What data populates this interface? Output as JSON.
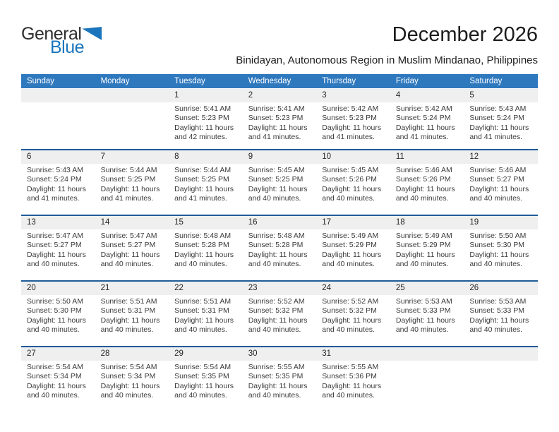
{
  "branding": {
    "logo_word_general": "General",
    "logo_word_blue": "Blue"
  },
  "header": {
    "title": "December 2026",
    "subtitle": "Binidayan, Autonomous Region in Muslim Mindanao, Philippines"
  },
  "colors": {
    "weekday_header_bg": "#2e78be",
    "week_divider": "#1f5c99",
    "day_number_band_bg": "#efefef",
    "logo_blue": "#1b75bc",
    "text": "#3b3b3b"
  },
  "calendar": {
    "weekday_headers": [
      "Sunday",
      "Monday",
      "Tuesday",
      "Wednesday",
      "Thursday",
      "Friday",
      "Saturday"
    ],
    "weeks": [
      {
        "days": [
          null,
          null,
          {
            "day": "1",
            "sunrise": "Sunrise: 5:41 AM",
            "sunset": "Sunset: 5:23 PM",
            "daylight": "Daylight: 11 hours and 42 minutes."
          },
          {
            "day": "2",
            "sunrise": "Sunrise: 5:41 AM",
            "sunset": "Sunset: 5:23 PM",
            "daylight": "Daylight: 11 hours and 41 minutes."
          },
          {
            "day": "3",
            "sunrise": "Sunrise: 5:42 AM",
            "sunset": "Sunset: 5:23 PM",
            "daylight": "Daylight: 11 hours and 41 minutes."
          },
          {
            "day": "4",
            "sunrise": "Sunrise: 5:42 AM",
            "sunset": "Sunset: 5:24 PM",
            "daylight": "Daylight: 11 hours and 41 minutes."
          },
          {
            "day": "5",
            "sunrise": "Sunrise: 5:43 AM",
            "sunset": "Sunset: 5:24 PM",
            "daylight": "Daylight: 11 hours and 41 minutes."
          }
        ]
      },
      {
        "days": [
          {
            "day": "6",
            "sunrise": "Sunrise: 5:43 AM",
            "sunset": "Sunset: 5:24 PM",
            "daylight": "Daylight: 11 hours and 41 minutes."
          },
          {
            "day": "7",
            "sunrise": "Sunrise: 5:44 AM",
            "sunset": "Sunset: 5:25 PM",
            "daylight": "Daylight: 11 hours and 41 minutes."
          },
          {
            "day": "8",
            "sunrise": "Sunrise: 5:44 AM",
            "sunset": "Sunset: 5:25 PM",
            "daylight": "Daylight: 11 hours and 41 minutes."
          },
          {
            "day": "9",
            "sunrise": "Sunrise: 5:45 AM",
            "sunset": "Sunset: 5:25 PM",
            "daylight": "Daylight: 11 hours and 40 minutes."
          },
          {
            "day": "10",
            "sunrise": "Sunrise: 5:45 AM",
            "sunset": "Sunset: 5:26 PM",
            "daylight": "Daylight: 11 hours and 40 minutes."
          },
          {
            "day": "11",
            "sunrise": "Sunrise: 5:46 AM",
            "sunset": "Sunset: 5:26 PM",
            "daylight": "Daylight: 11 hours and 40 minutes."
          },
          {
            "day": "12",
            "sunrise": "Sunrise: 5:46 AM",
            "sunset": "Sunset: 5:27 PM",
            "daylight": "Daylight: 11 hours and 40 minutes."
          }
        ]
      },
      {
        "days": [
          {
            "day": "13",
            "sunrise": "Sunrise: 5:47 AM",
            "sunset": "Sunset: 5:27 PM",
            "daylight": "Daylight: 11 hours and 40 minutes."
          },
          {
            "day": "14",
            "sunrise": "Sunrise: 5:47 AM",
            "sunset": "Sunset: 5:27 PM",
            "daylight": "Daylight: 11 hours and 40 minutes."
          },
          {
            "day": "15",
            "sunrise": "Sunrise: 5:48 AM",
            "sunset": "Sunset: 5:28 PM",
            "daylight": "Daylight: 11 hours and 40 minutes."
          },
          {
            "day": "16",
            "sunrise": "Sunrise: 5:48 AM",
            "sunset": "Sunset: 5:28 PM",
            "daylight": "Daylight: 11 hours and 40 minutes."
          },
          {
            "day": "17",
            "sunrise": "Sunrise: 5:49 AM",
            "sunset": "Sunset: 5:29 PM",
            "daylight": "Daylight: 11 hours and 40 minutes."
          },
          {
            "day": "18",
            "sunrise": "Sunrise: 5:49 AM",
            "sunset": "Sunset: 5:29 PM",
            "daylight": "Daylight: 11 hours and 40 minutes."
          },
          {
            "day": "19",
            "sunrise": "Sunrise: 5:50 AM",
            "sunset": "Sunset: 5:30 PM",
            "daylight": "Daylight: 11 hours and 40 minutes."
          }
        ]
      },
      {
        "days": [
          {
            "day": "20",
            "sunrise": "Sunrise: 5:50 AM",
            "sunset": "Sunset: 5:30 PM",
            "daylight": "Daylight: 11 hours and 40 minutes."
          },
          {
            "day": "21",
            "sunrise": "Sunrise: 5:51 AM",
            "sunset": "Sunset: 5:31 PM",
            "daylight": "Daylight: 11 hours and 40 minutes."
          },
          {
            "day": "22",
            "sunrise": "Sunrise: 5:51 AM",
            "sunset": "Sunset: 5:31 PM",
            "daylight": "Daylight: 11 hours and 40 minutes."
          },
          {
            "day": "23",
            "sunrise": "Sunrise: 5:52 AM",
            "sunset": "Sunset: 5:32 PM",
            "daylight": "Daylight: 11 hours and 40 minutes."
          },
          {
            "day": "24",
            "sunrise": "Sunrise: 5:52 AM",
            "sunset": "Sunset: 5:32 PM",
            "daylight": "Daylight: 11 hours and 40 minutes."
          },
          {
            "day": "25",
            "sunrise": "Sunrise: 5:53 AM",
            "sunset": "Sunset: 5:33 PM",
            "daylight": "Daylight: 11 hours and 40 minutes."
          },
          {
            "day": "26",
            "sunrise": "Sunrise: 5:53 AM",
            "sunset": "Sunset: 5:33 PM",
            "daylight": "Daylight: 11 hours and 40 minutes."
          }
        ]
      },
      {
        "days": [
          {
            "day": "27",
            "sunrise": "Sunrise: 5:54 AM",
            "sunset": "Sunset: 5:34 PM",
            "daylight": "Daylight: 11 hours and 40 minutes."
          },
          {
            "day": "28",
            "sunrise": "Sunrise: 5:54 AM",
            "sunset": "Sunset: 5:34 PM",
            "daylight": "Daylight: 11 hours and 40 minutes."
          },
          {
            "day": "29",
            "sunrise": "Sunrise: 5:54 AM",
            "sunset": "Sunset: 5:35 PM",
            "daylight": "Daylight: 11 hours and 40 minutes."
          },
          {
            "day": "30",
            "sunrise": "Sunrise: 5:55 AM",
            "sunset": "Sunset: 5:35 PM",
            "daylight": "Daylight: 11 hours and 40 minutes."
          },
          {
            "day": "31",
            "sunrise": "Sunrise: 5:55 AM",
            "sunset": "Sunset: 5:36 PM",
            "daylight": "Daylight: 11 hours and 40 minutes."
          },
          null,
          null
        ]
      }
    ]
  }
}
